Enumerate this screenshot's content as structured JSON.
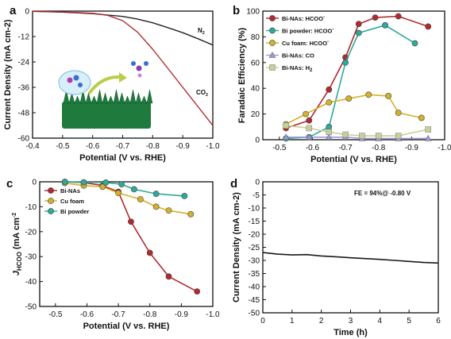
{
  "colors": {
    "bi_nas": "#b02a30",
    "bi_powder": "#2ea99a",
    "cu_foam": "#d4b12a",
    "bi_nas_co": "#9c9ad8",
    "bi_nas_h2": "#c9cf9a",
    "n2_curve": "#222222",
    "co2_curve": "#b02a30",
    "foam": "#1f7a3e",
    "stability_curve": "#1a1a1a"
  },
  "chart_data": [
    {
      "panel": "a",
      "type": "line",
      "xlabel": "Potential (V vs. RHE)",
      "ylabel": "Current Density (mA cm-2)",
      "xlim": [
        -0.4,
        -1.0
      ],
      "ylim": [
        -60,
        0
      ],
      "xticks": [
        "-0.4",
        "-0.5",
        "-0.6",
        "-0.7",
        "-0.8",
        "-0.9",
        "-1.0"
      ],
      "yticks": [
        "0",
        "-12",
        "-24",
        "-36",
        "-48",
        "-60"
      ],
      "series": [
        {
          "name": "N2",
          "color_key": "n2_curve",
          "x": [
            -0.4,
            -0.5,
            -0.6,
            -0.7,
            -0.75,
            -0.8,
            -0.85,
            -0.9,
            -0.95,
            -1.0
          ],
          "y": [
            -0.1,
            -0.5,
            -1.2,
            -2.5,
            -3.8,
            -5.5,
            -7.8,
            -10.2,
            -13.0,
            -16.0
          ]
        },
        {
          "name": "CO2",
          "color_key": "co2_curve",
          "x": [
            -0.4,
            -0.5,
            -0.6,
            -0.65,
            -0.7,
            -0.75,
            -0.8,
            -0.85,
            -0.9,
            -0.95,
            -1.0
          ],
          "y": [
            -0.1,
            -0.4,
            -1.0,
            -2.0,
            -4.5,
            -10.0,
            -18.0,
            -27.0,
            -36.0,
            -45.0,
            -54.0
          ]
        }
      ],
      "labels": [
        {
          "text": "N",
          "sub": "2",
          "series": "N2"
        },
        {
          "text": "CO",
          "sub": "2",
          "series": "CO2"
        }
      ]
    },
    {
      "panel": "b",
      "type": "line",
      "xlabel": "Potential (V vs. RHE)",
      "ylabel": "Faradaic Efficiency (%)",
      "xlim": [
        -0.45,
        -1.0
      ],
      "ylim": [
        0,
        100
      ],
      "xticks": [
        "-0.5",
        "-0.6",
        "-0.7",
        "-0.8",
        "-0.9",
        "-1.0"
      ],
      "yticks": [
        "0",
        "20",
        "40",
        "60",
        "80",
        "100"
      ],
      "series": [
        {
          "name": "Bi-NAs: HCOO",
          "sup": "-",
          "marker": "circle",
          "color_key": "bi_nas",
          "x": [
            -0.52,
            -0.59,
            -0.65,
            -0.7,
            -0.74,
            -0.79,
            -0.86,
            -0.95
          ],
          "y": [
            9,
            15,
            39,
            64,
            90,
            95,
            96,
            88
          ]
        },
        {
          "name": "Bi powder: HCOO",
          "sup": "-",
          "marker": "circle",
          "color_key": "bi_powder",
          "x": [
            -0.52,
            -0.59,
            -0.65,
            -0.7,
            -0.74,
            -0.82,
            -0.91
          ],
          "y": [
            1,
            2,
            10,
            60,
            83,
            89,
            75
          ]
        },
        {
          "name": "Cu foam: HCOO",
          "sup": "-",
          "marker": "circle",
          "color_key": "cu_foam",
          "x": [
            -0.52,
            -0.58,
            -0.65,
            -0.71,
            -0.77,
            -0.83,
            -0.86,
            -0.93
          ],
          "y": [
            12,
            20,
            29,
            32,
            35,
            34,
            21,
            17
          ]
        },
        {
          "name": "Bi-NAs: CO",
          "sup": "",
          "marker": "triangle",
          "color_key": "bi_nas_co",
          "x": [
            -0.52,
            -0.59,
            -0.65,
            -0.7,
            -0.75,
            -0.8,
            -0.86,
            -0.95
          ],
          "y": [
            2,
            2,
            2,
            2,
            1,
            1,
            1,
            1
          ]
        },
        {
          "name": "Bi-NAs: H",
          "sub": "2",
          "marker": "square",
          "color_key": "bi_nas_h2",
          "x": [
            -0.52,
            -0.59,
            -0.65,
            -0.7,
            -0.75,
            -0.8,
            -0.86,
            -0.95
          ],
          "y": [
            11,
            9,
            6,
            4,
            3,
            3,
            3,
            8
          ]
        }
      ]
    },
    {
      "panel": "c",
      "type": "line",
      "xlabel": "Potential (V vs. RHE)",
      "ylabel": "J",
      "ylabel_sub": "HCOO",
      "ylabel_tail": "(mA cm",
      "ylabel_sup": "-2",
      "xlim": [
        -0.45,
        -1.0
      ],
      "ylim": [
        -50,
        0
      ],
      "xticks": [
        "-0.5",
        "-0.6",
        "-0.7",
        "-0.8",
        "-0.9",
        "-1.0"
      ],
      "yticks": [
        "-50",
        "-40",
        "-30",
        "-20",
        "-10",
        "0"
      ],
      "series": [
        {
          "name": "Bi-NAs",
          "color_key": "bi_nas",
          "x": [
            -0.53,
            -0.59,
            -0.65,
            -0.7,
            -0.74,
            -0.8,
            -0.86,
            -0.95
          ],
          "y": [
            0,
            -0.3,
            -1.5,
            -4.0,
            -16.0,
            -28.5,
            -38.0,
            -44.0
          ]
        },
        {
          "name": "Cu foam",
          "color_key": "cu_foam",
          "x": [
            -0.53,
            -0.59,
            -0.65,
            -0.7,
            -0.77,
            -0.82,
            -0.86,
            -0.93
          ],
          "y": [
            -0.5,
            -1.5,
            -2.0,
            -4.5,
            -7.0,
            -10.0,
            -11.5,
            -13.0
          ]
        },
        {
          "name": "Bi powder",
          "color_key": "bi_powder",
          "x": [
            -0.53,
            -0.59,
            -0.66,
            -0.71,
            -0.75,
            -0.82,
            -0.91
          ],
          "y": [
            0,
            -0.2,
            -0.3,
            -1.0,
            -3.0,
            -4.8,
            -5.7
          ]
        }
      ]
    },
    {
      "panel": "d",
      "type": "line",
      "xlabel": "Time (h)",
      "ylabel": "Current Density (mA cm-2)",
      "xlim": [
        0,
        6
      ],
      "ylim": [
        -50,
        0
      ],
      "xticks": [
        "0",
        "1",
        "2",
        "3",
        "4",
        "5",
        "6"
      ],
      "yticks": [
        "0",
        "-5",
        "-10",
        "-15",
        "-20",
        "-25",
        "-30",
        "-35",
        "-40",
        "-45",
        "-50"
      ],
      "annotation": "FE = 94%@ -0.80 V",
      "series": [
        {
          "name": "",
          "color_key": "stability_curve",
          "x": [
            0,
            0.5,
            1,
            1.5,
            2,
            2.5,
            3,
            3.5,
            4,
            4.5,
            5,
            5.5,
            6
          ],
          "y": [
            -27.0,
            -27.6,
            -27.9,
            -27.8,
            -28.3,
            -28.6,
            -29.0,
            -29.3,
            -29.6,
            -30.0,
            -30.4,
            -30.8,
            -31.0
          ]
        }
      ]
    }
  ]
}
